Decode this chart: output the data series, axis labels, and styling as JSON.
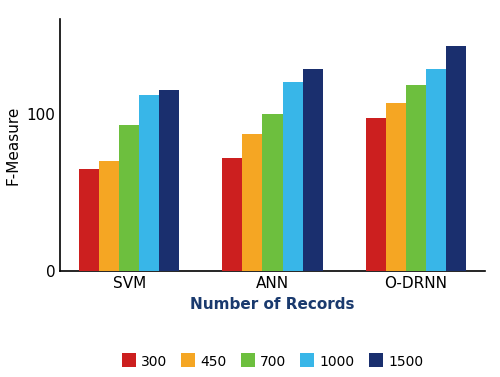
{
  "categories": [
    "SVM",
    "ANN",
    "O-DRNN"
  ],
  "series_labels": [
    "300",
    "450",
    "700",
    "1000",
    "1500"
  ],
  "series_colors": [
    "#cc1f1f",
    "#f5a623",
    "#6dbf3e",
    "#38b6e8",
    "#1a2f6e"
  ],
  "values": [
    [
      65,
      70,
      93,
      112,
      115
    ],
    [
      72,
      87,
      100,
      120,
      128
    ],
    [
      97,
      107,
      118,
      128,
      143
    ]
  ],
  "ylabel": "F-Measure",
  "xlabel": "Number of Records",
  "ylim": [
    0,
    160
  ],
  "yticks": [
    0,
    100
  ],
  "bar_width": 0.14,
  "legend_marker_size": 14
}
